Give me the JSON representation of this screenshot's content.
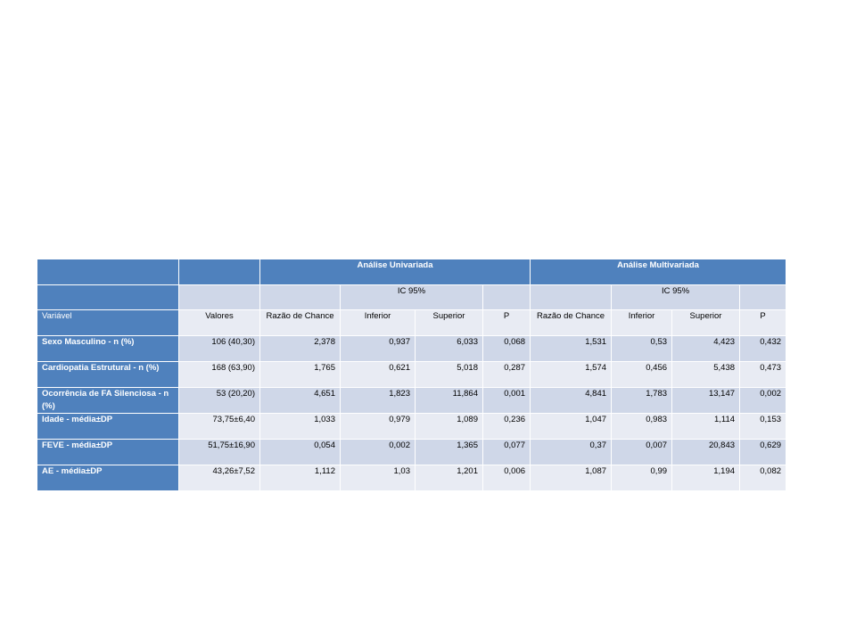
{
  "table": {
    "group_headers": [
      "",
      "",
      "Análise Univariada",
      "Análise Multivariada"
    ],
    "ci_headers": [
      "",
      "",
      "",
      "IC 95%",
      "",
      "",
      "IC 95%",
      ""
    ],
    "column_headers": [
      "Variável",
      "Valores",
      "Razão de Chance",
      "Inferior",
      "Superior",
      "P",
      "Razão de Chance",
      "Inferior",
      "Superior",
      "P"
    ],
    "rows": [
      [
        "Sexo Masculino - n (%)",
        "106 (40,30)",
        "2,378",
        "0,937",
        "6,033",
        "0,068",
        "1,531",
        "0,53",
        "4,423",
        "0,432"
      ],
      [
        "Cardiopatia Estrutural - n (%)",
        "168 (63,90)",
        "1,765",
        "0,621",
        "5,018",
        "0,287",
        "1,574",
        "0,456",
        "5,438",
        "0,473"
      ],
      [
        "Ocorrência de FA Silenciosa - n (%)",
        "53 (20,20)",
        "4,651",
        "1,823",
        "11,864",
        "0,001",
        "4,841",
        "1,783",
        "13,147",
        "0,002"
      ],
      [
        "Idade - média±DP",
        "73,75±6,40",
        "1,033",
        "0,979",
        "1,089",
        "0,236",
        "1,047",
        "0,983",
        "1,114",
        "0,153"
      ],
      [
        "FEVE - média±DP",
        "51,75±16,90",
        "0,054",
        "0,002",
        "1,365",
        "0,077",
        "0,37",
        "0,007",
        "20,843",
        "0,629"
      ],
      [
        "AE - média±DP",
        "43,26±7,52",
        "1,112",
        "1,03",
        "1,201",
        "0,006",
        "1,087",
        "0,99",
        "1,194",
        "0,082"
      ]
    ]
  }
}
